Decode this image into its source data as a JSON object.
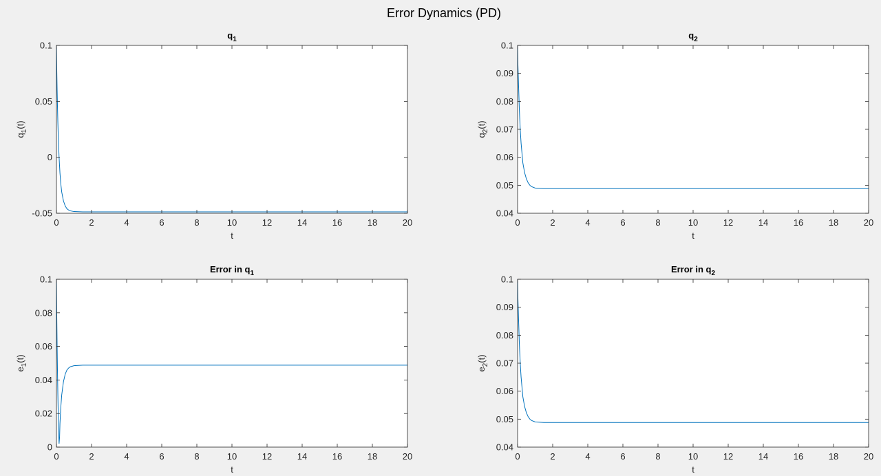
{
  "figure_title": "Error Dynamics (PD)",
  "line_color": "#0072BD",
  "axes_color": "#262626",
  "chart_data": [
    {
      "type": "line",
      "title": "q",
      "title_sub": "1",
      "xlabel": "t",
      "ylabel": "q",
      "ylabel_sub": "1",
      "ylabel_suffix": "(t)",
      "xlim": [
        0,
        20
      ],
      "ylim": [
        -0.05,
        0.1
      ],
      "xticks": [
        0,
        2,
        4,
        6,
        8,
        10,
        12,
        14,
        16,
        18,
        20
      ],
      "xtick_labels": [
        "0",
        "2",
        "4",
        "6",
        "8",
        "10",
        "12",
        "14",
        "16",
        "18",
        "20"
      ],
      "yticks": [
        -0.05,
        0,
        0.05,
        0.1
      ],
      "ytick_labels": [
        "-0.05",
        "0",
        "0.05",
        "0.1"
      ],
      "series": [
        {
          "x": [
            0,
            0.02,
            0.04,
            0.06,
            0.08,
            0.1,
            0.15,
            0.2,
            0.25,
            0.3,
            0.4,
            0.5,
            0.6,
            0.7,
            0.8,
            1.0,
            1.5,
            2,
            4,
            6,
            8,
            10,
            12,
            14,
            16,
            18,
            20
          ],
          "y": [
            0.1,
            0.078,
            0.06,
            0.045,
            0.032,
            0.021,
            0.0,
            -0.014,
            -0.024,
            -0.031,
            -0.039,
            -0.0435,
            -0.046,
            -0.0472,
            -0.0479,
            -0.0485,
            -0.0488,
            -0.0488,
            -0.0488,
            -0.0488,
            -0.0488,
            -0.0488,
            -0.0488,
            -0.0488,
            -0.0488,
            -0.0488,
            -0.0488
          ]
        }
      ]
    },
    {
      "type": "line",
      "title": "q",
      "title_sub": "2",
      "xlabel": "t",
      "ylabel": "q",
      "ylabel_sub": "2",
      "ylabel_suffix": "(t)",
      "xlim": [
        0,
        20
      ],
      "ylim": [
        0.04,
        0.1
      ],
      "xticks": [
        0,
        2,
        4,
        6,
        8,
        10,
        12,
        14,
        16,
        18,
        20
      ],
      "xtick_labels": [
        "0",
        "2",
        "4",
        "6",
        "8",
        "10",
        "12",
        "14",
        "16",
        "18",
        "20"
      ],
      "yticks": [
        0.04,
        0.05,
        0.06,
        0.07,
        0.08,
        0.09,
        0.1
      ],
      "ytick_labels": [
        "0.04",
        "0.05",
        "0.06",
        "0.07",
        "0.08",
        "0.09",
        "0.1"
      ],
      "series": [
        {
          "x": [
            0,
            0.02,
            0.05,
            0.08,
            0.1,
            0.15,
            0.2,
            0.3,
            0.4,
            0.5,
            0.6,
            0.7,
            0.8,
            1.0,
            1.5,
            2,
            4,
            6,
            8,
            10,
            12,
            14,
            16,
            18,
            20
          ],
          "y": [
            0.1,
            0.093,
            0.087,
            0.081,
            0.077,
            0.07,
            0.065,
            0.058,
            0.0545,
            0.0523,
            0.0509,
            0.05,
            0.0495,
            0.049,
            0.0488,
            0.0488,
            0.0488,
            0.0488,
            0.0488,
            0.0488,
            0.0488,
            0.0488,
            0.0488,
            0.0488,
            0.0488
          ]
        }
      ]
    },
    {
      "type": "line",
      "title": "Error in q",
      "title_sub": "1",
      "xlabel": "t",
      "ylabel": "e",
      "ylabel_sub": "1",
      "ylabel_suffix": "(t)",
      "xlim": [
        0,
        20
      ],
      "ylim": [
        0,
        0.1
      ],
      "xticks": [
        0,
        2,
        4,
        6,
        8,
        10,
        12,
        14,
        16,
        18,
        20
      ],
      "xtick_labels": [
        "0",
        "2",
        "4",
        "6",
        "8",
        "10",
        "12",
        "14",
        "16",
        "18",
        "20"
      ],
      "yticks": [
        0,
        0.02,
        0.04,
        0.06,
        0.08,
        0.1
      ],
      "ytick_labels": [
        "0",
        "0.02",
        "0.04",
        "0.06",
        "0.08",
        "0.1"
      ],
      "series": [
        {
          "x": [
            0,
            0.02,
            0.04,
            0.06,
            0.08,
            0.1,
            0.12,
            0.15,
            0.18,
            0.2,
            0.25,
            0.3,
            0.4,
            0.5,
            0.6,
            0.7,
            0.8,
            1.0,
            1.5,
            2,
            4,
            6,
            8,
            10,
            12,
            14,
            16,
            18,
            20
          ],
          "y": [
            0.1,
            0.078,
            0.06,
            0.045,
            0.032,
            0.021,
            0.011,
            0.002,
            0.006,
            0.014,
            0.024,
            0.031,
            0.039,
            0.0435,
            0.046,
            0.0472,
            0.0479,
            0.0485,
            0.0488,
            0.0488,
            0.0488,
            0.0488,
            0.0488,
            0.0488,
            0.0488,
            0.0488,
            0.0488,
            0.0488,
            0.0488
          ]
        }
      ]
    },
    {
      "type": "line",
      "title": "Error in q",
      "title_sub": "2",
      "xlabel": "t",
      "ylabel": "e",
      "ylabel_sub": "2",
      "ylabel_suffix": "(t)",
      "xlim": [
        0,
        20
      ],
      "ylim": [
        0.04,
        0.1
      ],
      "xticks": [
        0,
        2,
        4,
        6,
        8,
        10,
        12,
        14,
        16,
        18,
        20
      ],
      "xtick_labels": [
        "0",
        "2",
        "4",
        "6",
        "8",
        "10",
        "12",
        "14",
        "16",
        "18",
        "20"
      ],
      "yticks": [
        0.04,
        0.05,
        0.06,
        0.07,
        0.08,
        0.09,
        0.1
      ],
      "ytick_labels": [
        "0.04",
        "0.05",
        "0.06",
        "0.07",
        "0.08",
        "0.09",
        "0.1"
      ],
      "series": [
        {
          "x": [
            0,
            0.02,
            0.05,
            0.08,
            0.1,
            0.15,
            0.2,
            0.3,
            0.4,
            0.5,
            0.6,
            0.7,
            0.8,
            1.0,
            1.5,
            2,
            4,
            6,
            8,
            10,
            12,
            14,
            16,
            18,
            20
          ],
          "y": [
            0.1,
            0.093,
            0.087,
            0.081,
            0.077,
            0.07,
            0.065,
            0.058,
            0.0545,
            0.0523,
            0.0509,
            0.05,
            0.0495,
            0.049,
            0.0488,
            0.0488,
            0.0488,
            0.0488,
            0.0488,
            0.0488,
            0.0488,
            0.0488,
            0.0488,
            0.0488,
            0.0488
          ]
        }
      ]
    }
  ]
}
